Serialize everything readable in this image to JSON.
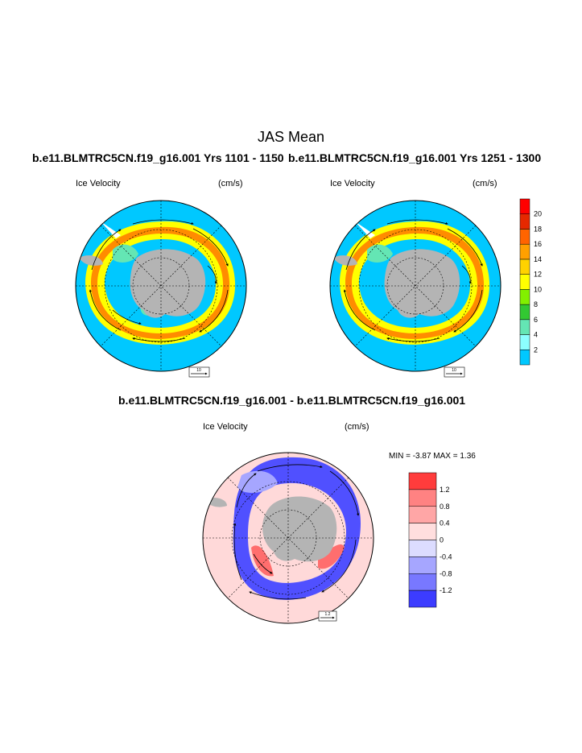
{
  "figure": {
    "title": "JAS Mean"
  },
  "panels": [
    {
      "title": "b.e11.BLMTRC5CN.f19_g16.001  Yrs 1101 - 1150",
      "left_label": "Ice Velocity",
      "right_label": "(cm/s)",
      "ref_vector_label": "10"
    },
    {
      "title": "b.e11.BLMTRC5CN.f19_g16.001  Yrs 1251 - 1300",
      "left_label": "Ice Velocity",
      "right_label": "(cm/s)",
      "ref_vector_label": "10"
    },
    {
      "title": "b.e11.BLMTRC5CN.f19_g16.001 - b.e11.BLMTRC5CN.f19_g16.001",
      "left_label": "Ice Velocity",
      "right_label": "(cm/s)",
      "ref_vector_label": "1.2",
      "min_max_text": "MIN =  -3.87 MAX =   1.36"
    }
  ],
  "colors": {
    "ocean": "#00c8ff",
    "land": "#b4b4b4",
    "diff_background": "#ffd9d9"
  },
  "chart_data": [
    {
      "type": "heatmap",
      "projection": "south polar stereographic",
      "variable": "Ice Velocity",
      "units": "cm/s",
      "colorbar": {
        "labels": [
          "2",
          "4",
          "6",
          "8",
          "10",
          "12",
          "14",
          "16",
          "18",
          "20"
        ],
        "colors": [
          "#00c8ff",
          "#8cffff",
          "#64e6b4",
          "#32c832",
          "#82f000",
          "#ffff00",
          "#ffd200",
          "#ffa000",
          "#ff6400",
          "#e62800",
          "#ff0000"
        ]
      }
    },
    {
      "type": "heatmap",
      "projection": "south polar stereographic",
      "variable": "Ice Velocity",
      "units": "cm/s",
      "difference_colorbar": {
        "labels": [
          "1.2",
          "0.8",
          "0.4",
          "0",
          "-0.4",
          "-0.8",
          "-1.2"
        ],
        "colors": [
          "#ff3c3c",
          "#ff8282",
          "#ffa6a6",
          "#ffdede",
          "#dcdcff",
          "#a6a6ff",
          "#7878ff",
          "#3c3cff"
        ]
      },
      "min": -3.87,
      "max": 1.36
    }
  ]
}
